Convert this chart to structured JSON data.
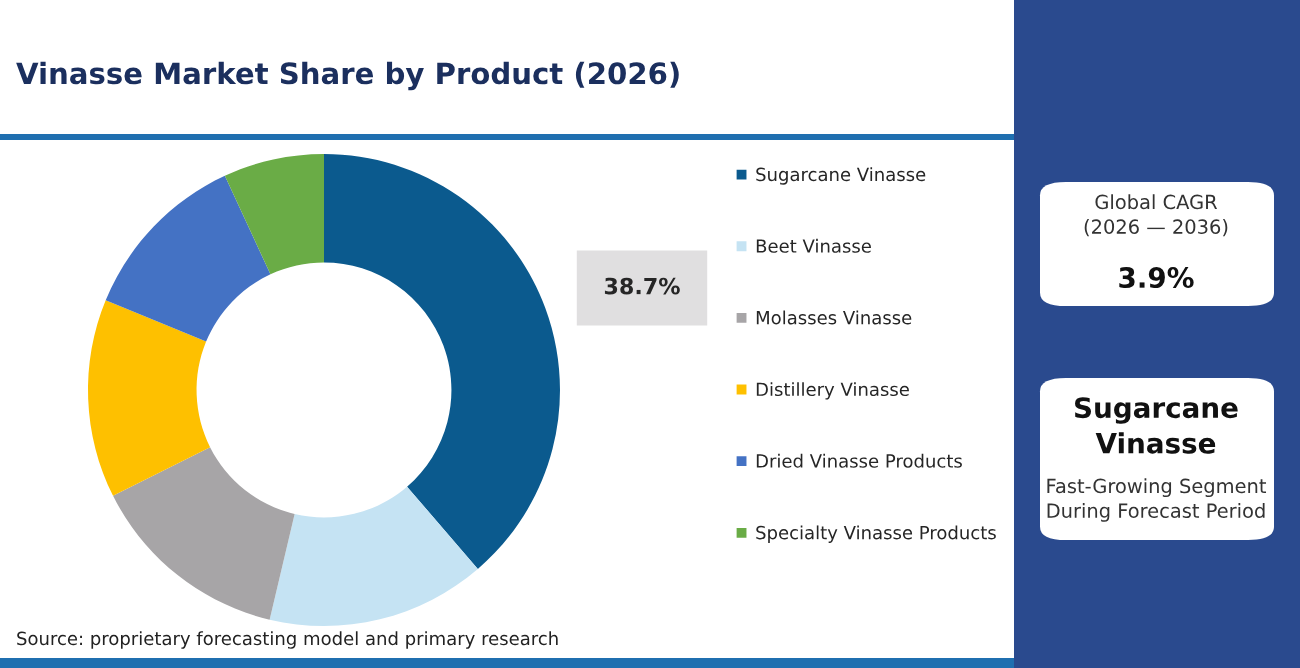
{
  "chart_data": {
    "type": "donut",
    "title": "Vinasse Market Share by Product (2026)",
    "categories": [
      "Sugarcane Vinasse",
      "Beet Vinasse",
      "Molasses Vinasse",
      "Distillery Vinasse",
      "Dried Vinasse Products",
      "Specialty Vinasse Products"
    ],
    "values": [
      38.7,
      15.0,
      13.9,
      13.6,
      11.9,
      6.9
    ],
    "colors": [
      "#0b5a8e",
      "#c5e3f3",
      "#a7a5a7",
      "#fec000",
      "#4472c4",
      "#6aac46"
    ],
    "value_labels": [
      "38.7%",
      null,
      null,
      null,
      null,
      null
    ],
    "legend": "right",
    "annotations": [
      "Source: proprietary forecasting model and primary research",
      "Global CAGR\n(2026 — 2036)",
      "3.9%",
      "Sugarcane\nVinasse",
      "Fast-Growing Segment\nDuring Forecast Period"
    ]
  }
}
